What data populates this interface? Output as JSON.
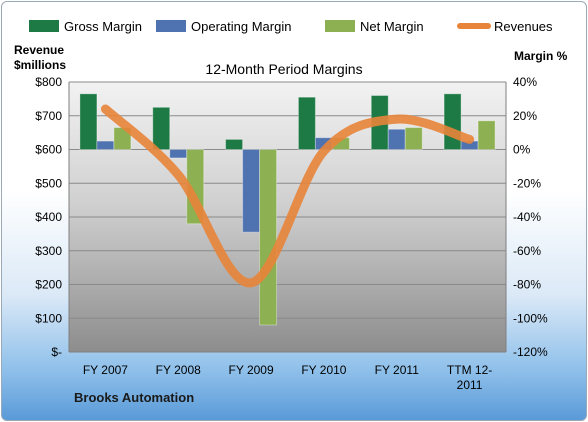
{
  "chart_data": {
    "type": "bar",
    "title": "12-Month Period Margins",
    "company": "Brooks Automation",
    "y_left_label_lines": [
      "Revenue",
      "$millions"
    ],
    "y_right_label": "Margin %",
    "categories": [
      {
        "lines": [
          "FY 2007"
        ]
      },
      {
        "lines": [
          "FY 2008"
        ]
      },
      {
        "lines": [
          "FY 2009"
        ]
      },
      {
        "lines": [
          "FY 2010"
        ]
      },
      {
        "lines": [
          "FY 2011"
        ]
      },
      {
        "lines": [
          "TTM 12-",
          "2011"
        ]
      }
    ],
    "series": [
      {
        "name": "Gross Margin",
        "axis": "right",
        "color": "#1e7a45",
        "values": [
          33,
          25,
          6,
          31,
          32,
          33
        ]
      },
      {
        "name": "Operating Margin",
        "axis": "right",
        "color": "#4f73b0",
        "values": [
          5,
          -5,
          -49,
          7,
          12,
          5
        ]
      },
      {
        "name": "Net Margin",
        "axis": "right",
        "color": "#8db052",
        "values": [
          13,
          -44,
          -104,
          7,
          13,
          17
        ]
      },
      {
        "name": "Revenues",
        "axis": "left",
        "type": "line",
        "color": "#e8843a",
        "values": [
          720,
          525,
          205,
          595,
          690,
          630
        ]
      }
    ],
    "y_left": {
      "min": 0,
      "max": 800,
      "ticks": [
        {
          "v": 800,
          "label": "$800"
        },
        {
          "v": 700,
          "label": "$700"
        },
        {
          "v": 600,
          "label": "$600"
        },
        {
          "v": 500,
          "label": "$500"
        },
        {
          "v": 400,
          "label": "$400"
        },
        {
          "v": 300,
          "label": "$300"
        },
        {
          "v": 200,
          "label": "$200"
        },
        {
          "v": 100,
          "label": "$100"
        },
        {
          "v": 0,
          "label": "$-"
        }
      ]
    },
    "y_right": {
      "min": -120,
      "max": 40,
      "ticks": [
        {
          "v": 40,
          "label": "40%"
        },
        {
          "v": 20,
          "label": "20%"
        },
        {
          "v": 0,
          "label": "0%"
        },
        {
          "v": -20,
          "label": "-20%"
        },
        {
          "v": -40,
          "label": "-40%"
        },
        {
          "v": -60,
          "label": "-60%"
        },
        {
          "v": -80,
          "label": "-80%"
        },
        {
          "v": -100,
          "label": "-100%"
        },
        {
          "v": -120,
          "label": "-120%"
        }
      ]
    },
    "grid": true,
    "legend_position": "top"
  }
}
